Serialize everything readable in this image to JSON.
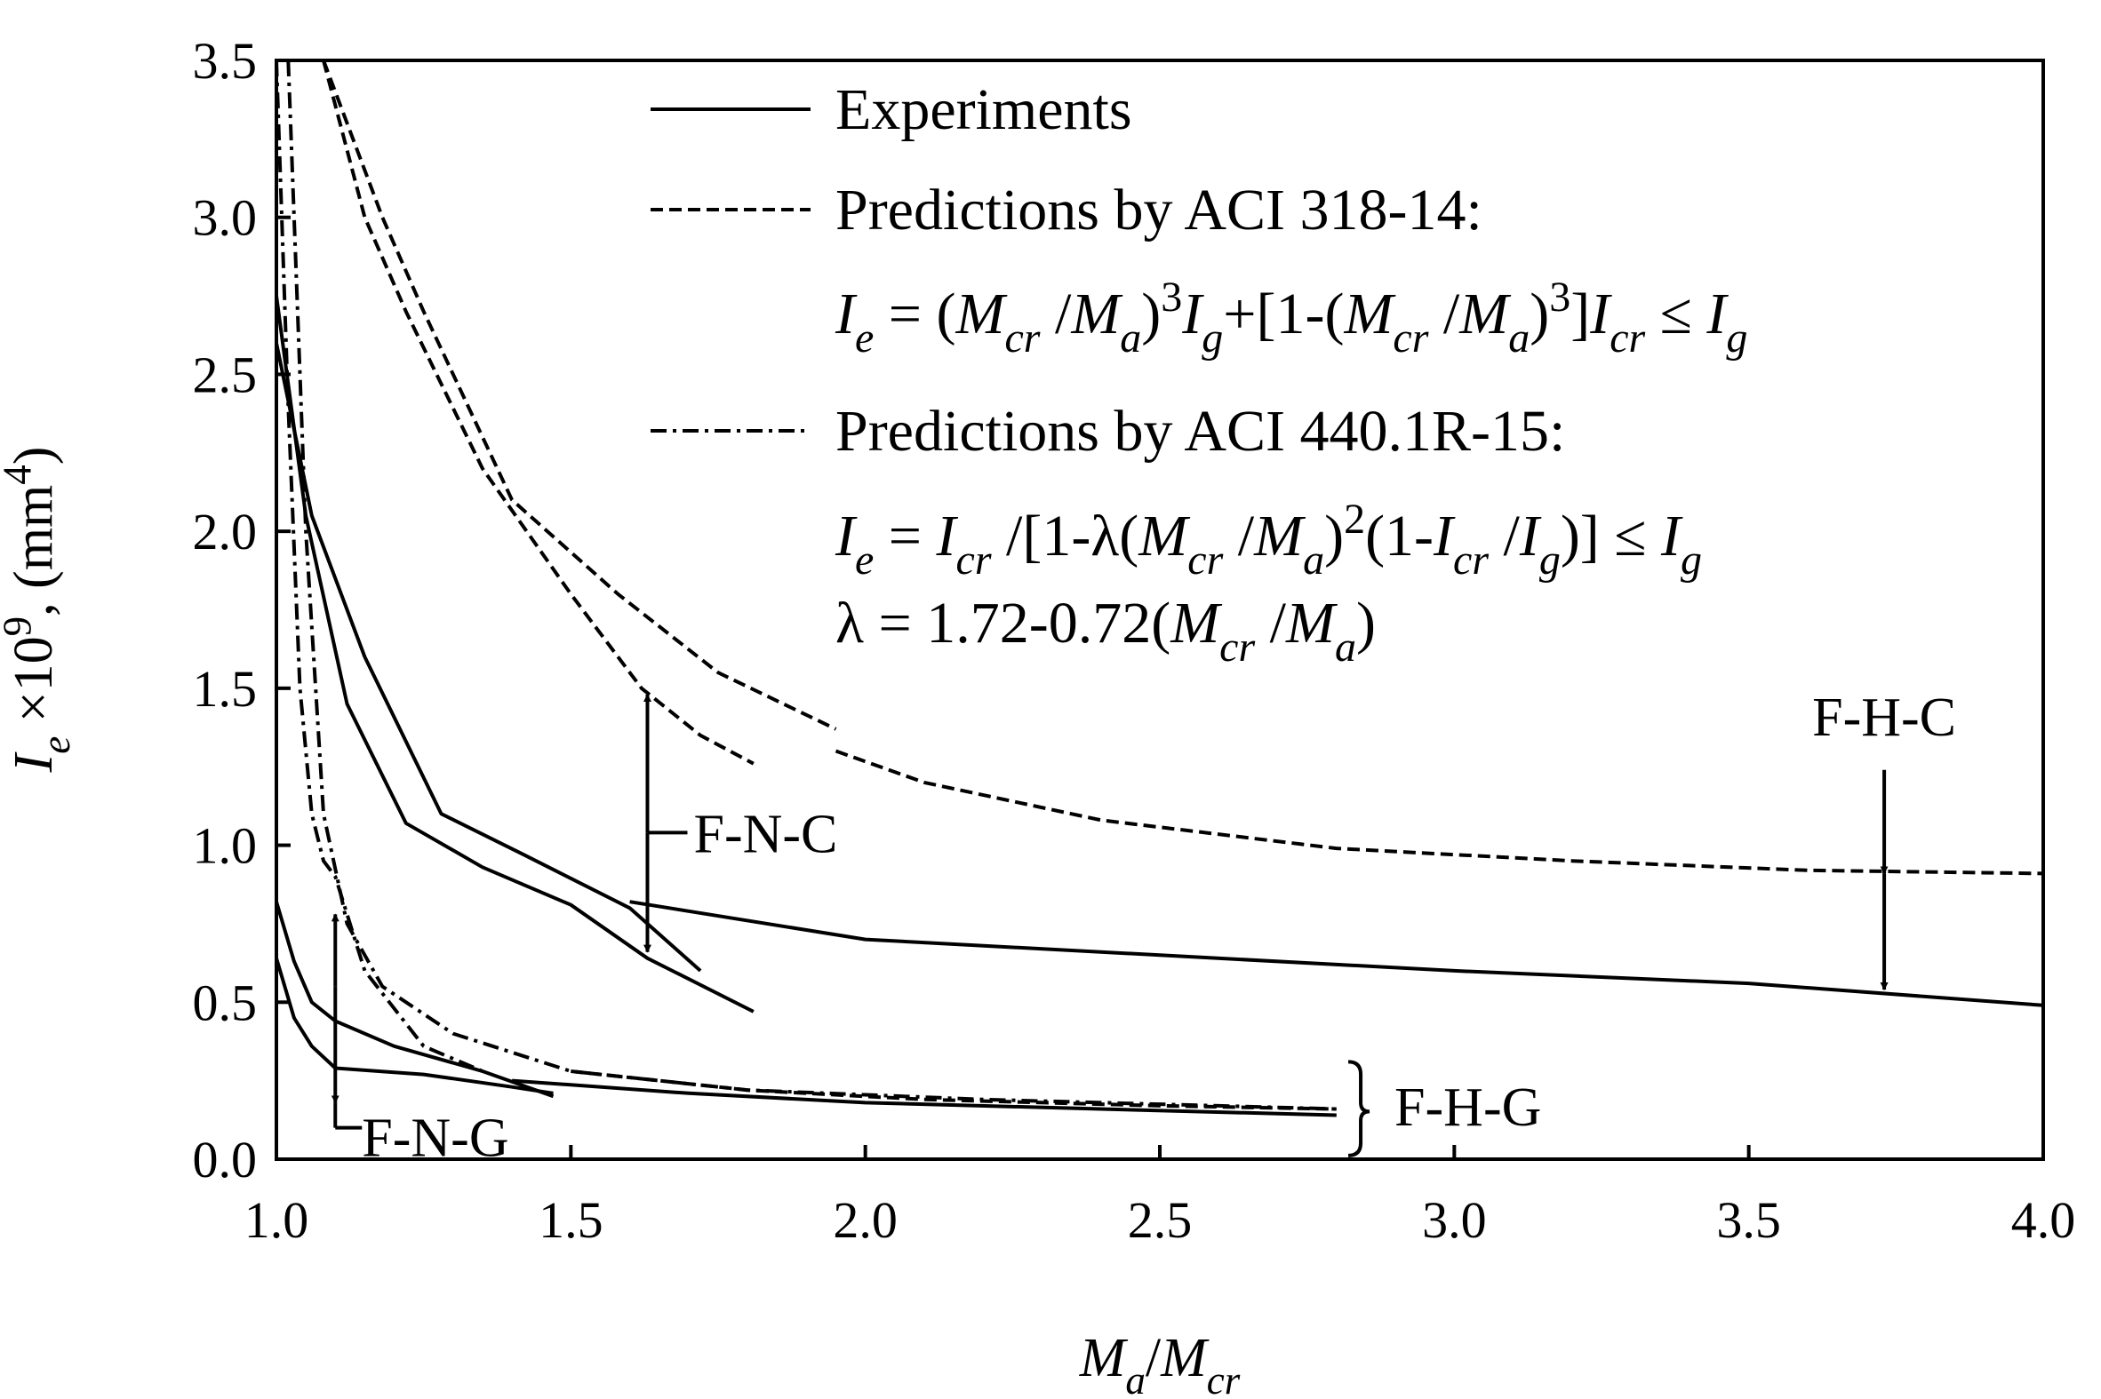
{
  "chart_data": {
    "type": "line",
    "xlabel": {
      "parts": [
        {
          "text": "M",
          "italic": true
        },
        {
          "text": "a",
          "italic": true,
          "sub": true
        },
        {
          "text": "/"
        },
        {
          "text": "M",
          "italic": true
        },
        {
          "text": "cr",
          "italic": true,
          "sub": true
        }
      ]
    },
    "ylabel": {
      "parts": [
        {
          "text": "I",
          "italic": true
        },
        {
          "text": "e",
          "italic": true,
          "sub": true
        },
        {
          "text": " ×10"
        },
        {
          "text": "9",
          "sup": true
        },
        {
          "text": ", (mm"
        },
        {
          "text": "4",
          "sup": true
        },
        {
          "text": ")"
        }
      ]
    },
    "xlim": [
      1.0,
      4.0
    ],
    "ylim": [
      0.0,
      3.5
    ],
    "xticks": [
      "1.0",
      "1.5",
      "2.0",
      "2.5",
      "3.0",
      "3.5",
      "4.0"
    ],
    "yticks": [
      "0.0",
      "0.5",
      "1.0",
      "1.5",
      "2.0",
      "2.5",
      "3.0",
      "3.5"
    ],
    "grid": false,
    "legend_position": "top-right",
    "legend": [
      {
        "style": "solid",
        "lines": [
          {
            "parts": [
              {
                "text": "Experiments"
              }
            ]
          }
        ]
      },
      {
        "style": "dashed",
        "lines": [
          {
            "parts": [
              {
                "text": "Predictions  by ACI 318-14:"
              }
            ]
          },
          {
            "parts": [
              {
                "text": "I",
                "italic": true
              },
              {
                "text": "e",
                "italic": true,
                "sub": true
              },
              {
                "text": " = ("
              },
              {
                "text": "M",
                "italic": true
              },
              {
                "text": "cr",
                "italic": true,
                "sub": true
              },
              {
                "text": " /"
              },
              {
                "text": "M",
                "italic": true
              },
              {
                "text": "a",
                "italic": true,
                "sub": true
              },
              {
                "text": ")"
              },
              {
                "text": "3",
                "sup": true
              },
              {
                "text": "I",
                "italic": true
              },
              {
                "text": "g",
                "italic": true,
                "sub": true
              },
              {
                "text": "+[1-("
              },
              {
                "text": "M",
                "italic": true
              },
              {
                "text": "cr",
                "italic": true,
                "sub": true
              },
              {
                "text": " /"
              },
              {
                "text": "M",
                "italic": true
              },
              {
                "text": "a",
                "italic": true,
                "sub": true
              },
              {
                "text": ")"
              },
              {
                "text": "3",
                "sup": true
              },
              {
                "text": "]"
              },
              {
                "text": "I",
                "italic": true
              },
              {
                "text": "cr",
                "italic": true,
                "sub": true
              },
              {
                "text": " ≤ "
              },
              {
                "text": "I",
                "italic": true
              },
              {
                "text": "g",
                "italic": true,
                "sub": true
              }
            ]
          }
        ]
      },
      {
        "style": "dashdot",
        "lines": [
          {
            "parts": [
              {
                "text": "Predictions  by ACI 440.1R-15:"
              }
            ]
          },
          {
            "parts": [
              {
                "text": "I",
                "italic": true
              },
              {
                "text": "e",
                "italic": true,
                "sub": true
              },
              {
                "text": " = "
              },
              {
                "text": "I",
                "italic": true
              },
              {
                "text": "cr",
                "italic": true,
                "sub": true
              },
              {
                "text": " /[1-λ("
              },
              {
                "text": "M",
                "italic": true
              },
              {
                "text": "cr",
                "italic": true,
                "sub": true
              },
              {
                "text": " /"
              },
              {
                "text": "M",
                "italic": true
              },
              {
                "text": "a",
                "italic": true,
                "sub": true
              },
              {
                "text": ")"
              },
              {
                "text": "2",
                "sup": true
              },
              {
                "text": "(1-"
              },
              {
                "text": "I",
                "italic": true
              },
              {
                "text": "cr",
                "italic": true,
                "sub": true
              },
              {
                "text": " /"
              },
              {
                "text": "I",
                "italic": true
              },
              {
                "text": "g",
                "italic": true,
                "sub": true
              },
              {
                "text": ")] ≤ "
              },
              {
                "text": "I",
                "italic": true
              },
              {
                "text": "g",
                "italic": true,
                "sub": true
              }
            ]
          },
          {
            "parts": [
              {
                "text": " λ = 1.72-0.72("
              },
              {
                "text": "M",
                "italic": true
              },
              {
                "text": "cr",
                "italic": true,
                "sub": true
              },
              {
                "text": " /"
              },
              {
                "text": "M",
                "italic": true
              },
              {
                "text": "a",
                "italic": true,
                "sub": true
              },
              {
                "text": ")"
              }
            ]
          }
        ]
      }
    ],
    "annotations": [
      "F-N-C",
      "F-H-C",
      "F-N-G",
      "F-H-G"
    ],
    "series": [
      {
        "group": "F-N-C",
        "style": "solid",
        "x": [
          1.0,
          1.05,
          1.12,
          1.22,
          1.35,
          1.5,
          1.63,
          1.81
        ],
        "y": [
          2.75,
          2.05,
          1.45,
          1.07,
          0.93,
          0.81,
          0.64,
          0.47
        ]
      },
      {
        "group": "F-N-C",
        "style": "solid",
        "x": [
          1.0,
          1.06,
          1.15,
          1.28,
          1.42,
          1.6,
          1.72
        ],
        "y": [
          2.6,
          2.05,
          1.6,
          1.1,
          0.97,
          0.8,
          0.6
        ]
      },
      {
        "group": "F-N-C",
        "style": "dashed",
        "x": [
          1.08,
          1.15,
          1.22,
          1.35,
          1.5,
          1.62,
          1.72,
          1.81
        ],
        "y": [
          3.5,
          3.0,
          2.7,
          2.2,
          1.8,
          1.5,
          1.35,
          1.26
        ]
      },
      {
        "group": "F-N-C",
        "style": "dashed",
        "x": [
          1.08,
          1.18,
          1.25,
          1.4,
          1.58,
          1.75,
          1.95
        ],
        "y": [
          3.5,
          3.0,
          2.7,
          2.1,
          1.8,
          1.55,
          1.37
        ]
      },
      {
        "group": "F-H-C",
        "style": "solid",
        "x": [
          1.6,
          2.0,
          2.5,
          3.0,
          3.5,
          4.0
        ],
        "y": [
          0.82,
          0.7,
          0.65,
          0.6,
          0.56,
          0.49
        ]
      },
      {
        "group": "F-H-C",
        "style": "dashed",
        "x": [
          1.95,
          2.1,
          2.4,
          2.8,
          3.2,
          3.6,
          4.0
        ],
        "y": [
          1.3,
          1.2,
          1.08,
          0.99,
          0.95,
          0.92,
          0.91
        ]
      },
      {
        "group": "F-N-G",
        "style": "solid",
        "x": [
          1.0,
          1.03,
          1.06,
          1.1,
          1.2,
          1.35,
          1.47
        ],
        "y": [
          0.82,
          0.63,
          0.5,
          0.44,
          0.36,
          0.28,
          0.2
        ]
      },
      {
        "group": "F-N-G",
        "style": "solid",
        "x": [
          1.0,
          1.03,
          1.06,
          1.1,
          1.25,
          1.4,
          1.47
        ],
        "y": [
          0.64,
          0.45,
          0.36,
          0.29,
          0.27,
          0.23,
          0.21
        ]
      },
      {
        "group": "F-N-G",
        "style": "dashdot",
        "x": [
          1.0,
          1.02,
          1.04,
          1.06,
          1.08,
          1.1,
          1.15,
          1.25,
          1.35
        ],
        "y": [
          3.5,
          2.4,
          1.5,
          1.1,
          0.95,
          0.9,
          0.6,
          0.36,
          0.28
        ]
      },
      {
        "group": "F-H-G",
        "style": "solid",
        "x": [
          1.4,
          1.7,
          2.0,
          2.4,
          2.8
        ],
        "y": [
          0.25,
          0.21,
          0.18,
          0.16,
          0.14
        ]
      },
      {
        "group": "F-H-G",
        "style": "dashed",
        "x": [
          1.5,
          1.8,
          2.1,
          2.5,
          2.8
        ],
        "y": [
          0.28,
          0.22,
          0.19,
          0.17,
          0.16
        ]
      },
      {
        "group": "F-H-G",
        "style": "dashdot",
        "x": [
          1.02,
          1.05,
          1.08,
          1.12,
          1.18,
          1.3,
          1.5,
          1.8,
          2.2,
          2.6,
          2.8
        ],
        "y": [
          3.5,
          2.0,
          1.1,
          0.75,
          0.55,
          0.4,
          0.28,
          0.22,
          0.19,
          0.17,
          0.16
        ]
      }
    ]
  }
}
